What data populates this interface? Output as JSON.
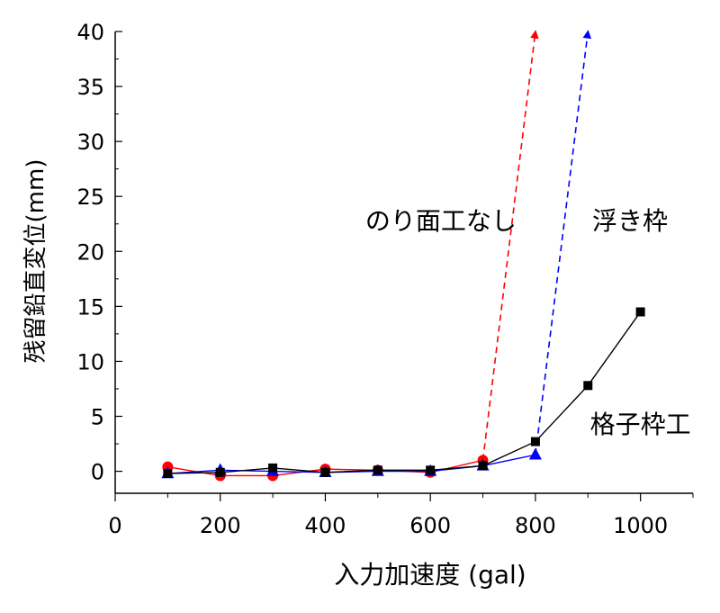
{
  "chart_data": {
    "type": "line",
    "xlabel": "入力加速度 (gal)",
    "ylabel": "残留鉛直変位(mm)",
    "xlim": [
      0,
      1100
    ],
    "ylim": [
      -2,
      40
    ],
    "xticks": [
      0,
      200,
      400,
      600,
      800,
      1000
    ],
    "yticks": [
      0,
      5,
      10,
      15,
      20,
      25,
      30,
      35,
      40
    ],
    "grid": false,
    "legend": "none",
    "series": [
      {
        "marker": "circle",
        "color": "#ff0000",
        "x": [
          100,
          200,
          300,
          400,
          500,
          600,
          700
        ],
        "y": [
          0.4,
          -0.4,
          -0.4,
          0.2,
          0.1,
          -0.1,
          1.0
        ],
        "extension": {
          "from": [
            700,
            1.0
          ],
          "to": [
            800,
            40.0
          ],
          "style": "dashed-arrow",
          "color": "#ff0000"
        }
      },
      {
        "marker": "triangle",
        "color": "#0000ff",
        "x": [
          100,
          200,
          300,
          400,
          500,
          600,
          700,
          800
        ],
        "y": [
          -0.2,
          0.1,
          0.0,
          -0.1,
          0.0,
          0.0,
          0.5,
          1.5
        ],
        "extension": {
          "from": [
            800,
            1.5
          ],
          "to": [
            900,
            40.0
          ],
          "style": "dashed-arrow",
          "color": "#0000ff"
        }
      },
      {
        "marker": "square",
        "color": "#000000",
        "x": [
          100,
          200,
          300,
          400,
          500,
          600,
          700,
          800,
          900,
          1000
        ],
        "y": [
          -0.2,
          -0.1,
          0.3,
          -0.1,
          0.1,
          0.1,
          0.5,
          2.7,
          7.8,
          14.5
        ]
      }
    ],
    "annotations": [
      {
        "text": "のり面工なし",
        "x": 620,
        "y": 22
      },
      {
        "text": "浮き枠",
        "x": 980,
        "y": 22
      },
      {
        "text": "格子枠工",
        "x": 1000,
        "y": 3.5
      }
    ]
  }
}
